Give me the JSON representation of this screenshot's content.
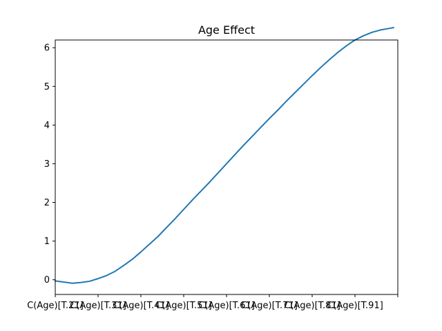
{
  "chart_data": {
    "type": "line",
    "title": "Age Effect",
    "xlabel": "",
    "ylabel": "",
    "grid": false,
    "legend": "none",
    "line_color": "#1f77b4",
    "xlim": [
      0.0,
      8.0
    ],
    "ylim": [
      -0.38,
      6.2
    ],
    "xticks": [
      {
        "pos": 0,
        "label": "C(Age)[T.21]"
      },
      {
        "pos": 1,
        "label": "C(Age)[T.31]"
      },
      {
        "pos": 2,
        "label": "C(Age)[T.41]"
      },
      {
        "pos": 3,
        "label": "C(Age)[T.51]"
      },
      {
        "pos": 4,
        "label": "C(Age)[T.61]"
      },
      {
        "pos": 5,
        "label": "C(Age)[T.71]"
      },
      {
        "pos": 6,
        "label": "C(Age)[T.81]"
      },
      {
        "pos": 7,
        "label": "C(Age)[T.91]"
      },
      {
        "pos": 8,
        "label": ""
      }
    ],
    "yticks": [
      0,
      1,
      2,
      3,
      4,
      5,
      6
    ],
    "x": [
      0.0,
      0.2,
      0.4,
      0.6,
      0.8,
      1.0,
      1.2,
      1.4,
      1.6,
      1.8,
      2.0,
      2.2,
      2.4,
      2.6,
      2.8,
      3.0,
      3.2,
      3.4,
      3.6,
      3.8,
      4.0,
      4.2,
      4.4,
      4.6,
      4.8,
      5.0,
      5.2,
      5.4,
      5.6,
      5.8,
      6.0,
      6.2,
      6.4,
      6.6,
      6.8,
      7.0,
      7.2,
      7.4,
      7.6,
      7.8,
      7.9
    ],
    "y": [
      -0.03,
      -0.06,
      -0.09,
      -0.07,
      -0.04,
      0.03,
      0.11,
      0.22,
      0.37,
      0.53,
      0.72,
      0.92,
      1.12,
      1.35,
      1.58,
      1.82,
      2.06,
      2.29,
      2.52,
      2.76,
      3.0,
      3.24,
      3.48,
      3.71,
      3.94,
      4.17,
      4.39,
      4.62,
      4.84,
      5.06,
      5.28,
      5.49,
      5.69,
      5.88,
      6.05,
      6.2,
      6.31,
      6.4,
      6.46,
      6.5,
      6.52
    ]
  }
}
